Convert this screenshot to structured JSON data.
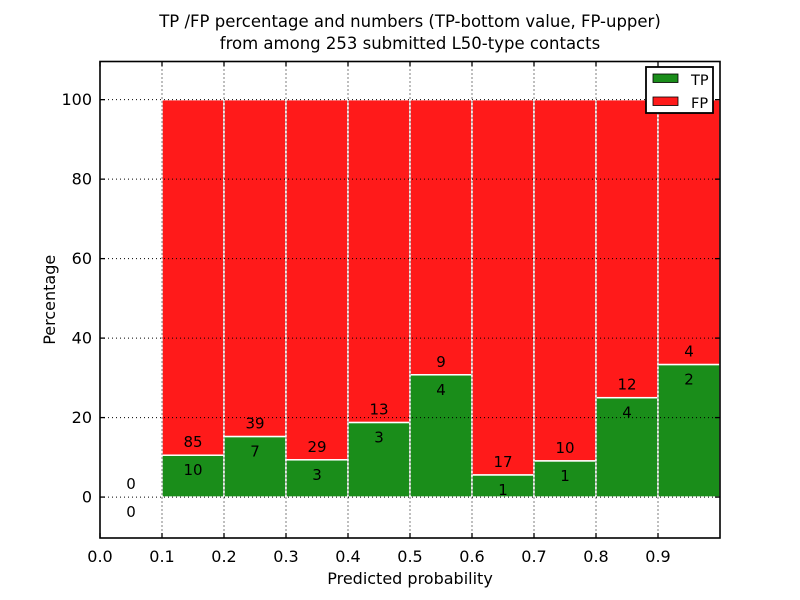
{
  "chart_data": {
    "type": "bar",
    "stacked": true,
    "title": "TP /FP percentage and numbers (TP-bottom value, FP-upper)\nfrom among 253 submitted L50-type contacts",
    "xlabel": "Predicted probability",
    "ylabel": "Percentage",
    "xlim": [
      0.0,
      1.0
    ],
    "ylim": [
      -10.3,
      109.6
    ],
    "xticks": [
      {
        "value": 0.0,
        "label": "0.0"
      },
      {
        "value": 0.1,
        "label": "0.1"
      },
      {
        "value": 0.2,
        "label": "0.2"
      },
      {
        "value": 0.3,
        "label": "0.3"
      },
      {
        "value": 0.4,
        "label": "0.4"
      },
      {
        "value": 0.5,
        "label": "0.5"
      },
      {
        "value": 0.6,
        "label": "0.6"
      },
      {
        "value": 0.7,
        "label": "0.7"
      },
      {
        "value": 0.8,
        "label": "0.8"
      },
      {
        "value": 0.9,
        "label": "0.9"
      }
    ],
    "yticks": [
      {
        "value": 0,
        "label": "0"
      },
      {
        "value": 20,
        "label": "20"
      },
      {
        "value": 40,
        "label": "40"
      },
      {
        "value": 60,
        "label": "60"
      },
      {
        "value": 80,
        "label": "80"
      },
      {
        "value": 100,
        "label": "100"
      }
    ],
    "grid": {
      "visible": true,
      "style": "dotted",
      "color": "#000000"
    },
    "bin_width": 0.1,
    "categories": [
      "0.0-0.1",
      "0.1-0.2",
      "0.2-0.3",
      "0.3-0.4",
      "0.4-0.5",
      "0.5-0.6",
      "0.6-0.7",
      "0.7-0.8",
      "0.8-0.9",
      "0.9-1.0"
    ],
    "series": [
      {
        "name": "TP",
        "color": "#1A8D1A",
        "counts": [
          0,
          10,
          7,
          3,
          3,
          4,
          1,
          1,
          4,
          2
        ]
      },
      {
        "name": "FP",
        "color": "#FF1A1A",
        "counts": [
          0,
          85,
          39,
          29,
          13,
          9,
          17,
          10,
          12,
          4
        ]
      }
    ],
    "stack_total_pct": 100,
    "total_contacts": 253,
    "legend": {
      "position": "upper right",
      "entries": [
        {
          "label": "TP",
          "color": "#1A8D1A"
        },
        {
          "label": "FP",
          "color": "#FF1A1A"
        }
      ]
    },
    "bar_edge_color": "#ffffff",
    "frame_color": "#000000"
  }
}
